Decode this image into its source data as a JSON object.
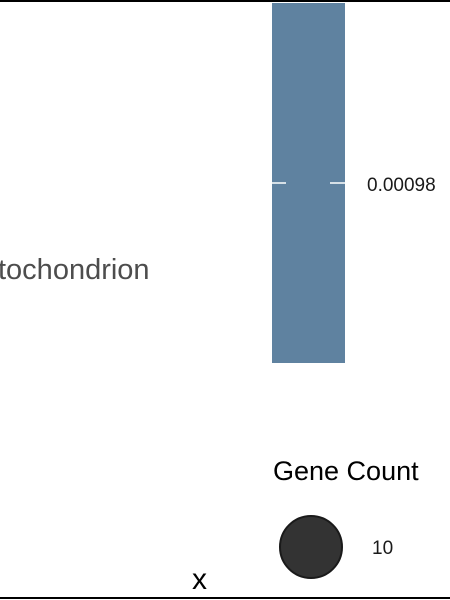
{
  "chart_data": {
    "type": "bar",
    "categories": [
      "Mitochondrion"
    ],
    "category_label_visible": "tochondrion",
    "values": [
      0.00098
    ],
    "value_labels": [
      "0.00098"
    ],
    "xlabel": "x",
    "ylabel": "",
    "bar_color": "#5f82a0",
    "legend": {
      "title": "Gene Count",
      "entries": [
        {
          "label": "10",
          "size": 10,
          "color": "#333333"
        }
      ],
      "placement": "bottom-right"
    },
    "grid": false
  }
}
